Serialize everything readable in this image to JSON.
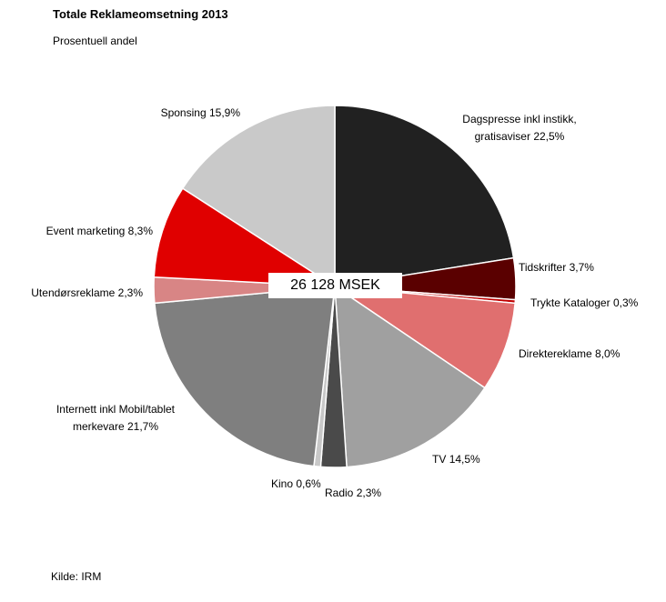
{
  "chart_data": {
    "type": "pie",
    "title": "Totale Reklameomsetning 2013",
    "subtitle": "Prosentuell andel",
    "center_label": "26 128 MSEK",
    "source": "Kilde: IRM",
    "categories": [
      "Dagspresse inkl instikk, gratisaviser",
      "Tidskrifter",
      "Trykte Kataloger",
      "Direktereklame",
      "TV",
      "Radio",
      "Kino",
      "Internett inkl Mobil/tablet merkevare",
      "Utendørsreklame",
      "Event marketing",
      "Sponsing"
    ],
    "values": [
      22.5,
      3.7,
      0.3,
      8.0,
      14.5,
      2.3,
      0.6,
      21.7,
      2.3,
      8.3,
      15.9
    ],
    "value_labels": [
      "22,5%",
      "3,7%",
      "0,3%",
      "8,0%",
      "14,5%",
      "2,3%",
      "0,6%",
      "21,7%",
      "2,3%",
      "8,3%",
      "15,9%"
    ],
    "colors": [
      "#212121",
      "#5a0000",
      "#c00000",
      "#e06f6f",
      "#a0a0a0",
      "#4a4a4a",
      "#c8c8c8",
      "#7f7f7f",
      "#d88585",
      "#e00000",
      "#c9c9c9"
    ]
  }
}
